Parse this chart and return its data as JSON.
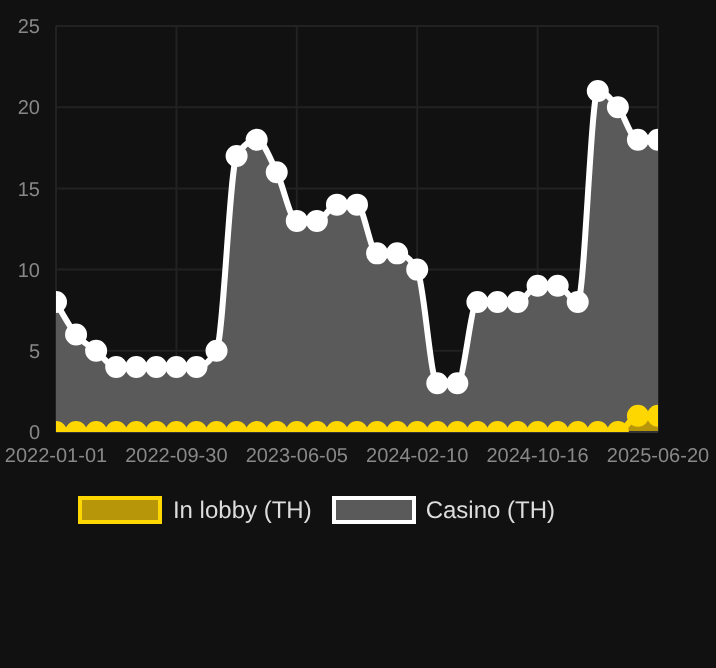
{
  "chart_data": {
    "type": "area",
    "categories": [
      "2022-01-01",
      null,
      null,
      null,
      null,
      null,
      "2022-09-30",
      null,
      null,
      null,
      null,
      null,
      "2023-06-05",
      null,
      null,
      null,
      null,
      null,
      "2024-02-10",
      null,
      null,
      null,
      null,
      null,
      "2024-10-16",
      null,
      null,
      null,
      null,
      null,
      "2025-06-20"
    ],
    "series": [
      {
        "name": "In lobby (TH)",
        "color": "#ffd700",
        "values": [
          0,
          0,
          0,
          0,
          0,
          0,
          0,
          0,
          0,
          0,
          0,
          0,
          0,
          0,
          0,
          0,
          0,
          0,
          0,
          0,
          0,
          0,
          0,
          0,
          0,
          0,
          0,
          0,
          0,
          1,
          1
        ]
      },
      {
        "name": "Casino (TH)",
        "color": "#ffffff",
        "values": [
          8,
          6,
          5,
          4,
          4,
          4,
          4,
          4,
          5,
          17,
          18,
          16,
          13,
          13,
          14,
          14,
          11,
          11,
          10,
          3,
          3,
          8,
          8,
          8,
          9,
          9,
          8,
          21,
          20,
          18,
          18
        ]
      }
    ],
    "ylim": [
      0,
      25
    ],
    "yticks": [
      0,
      5,
      10,
      15,
      20,
      25
    ],
    "grid": true,
    "legend": "bottom",
    "marker": "circle"
  }
}
